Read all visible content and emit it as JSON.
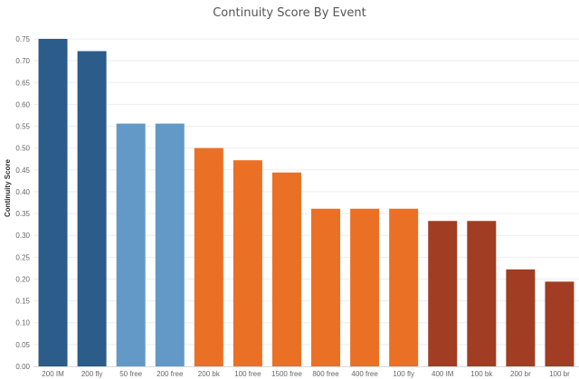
{
  "chart_data": {
    "type": "bar",
    "title": "Continuity Score By Event",
    "xlabel": "",
    "ylabel": "Continuity Score",
    "ylim": [
      0,
      0.75
    ],
    "ytick_step": 0.05,
    "grid": true,
    "categories": [
      "200 IM",
      "200 fly",
      "50 free",
      "200 free",
      "200 bk",
      "100 free",
      "1500 free",
      "800 free",
      "400 free",
      "100 fly",
      "400 IM",
      "100 bk",
      "200 br",
      "100 br"
    ],
    "values": [
      0.75,
      0.722,
      0.556,
      0.556,
      0.5,
      0.472,
      0.444,
      0.361,
      0.361,
      0.361,
      0.333,
      0.333,
      0.222,
      0.194
    ],
    "colors": [
      "#2b5c8a",
      "#2b5c8a",
      "#6399c6",
      "#6399c6",
      "#ea7025",
      "#ea7025",
      "#ea7025",
      "#ea7025",
      "#ea7025",
      "#ea7025",
      "#a03d22",
      "#a03d22",
      "#a03d22",
      "#a03d22"
    ]
  }
}
